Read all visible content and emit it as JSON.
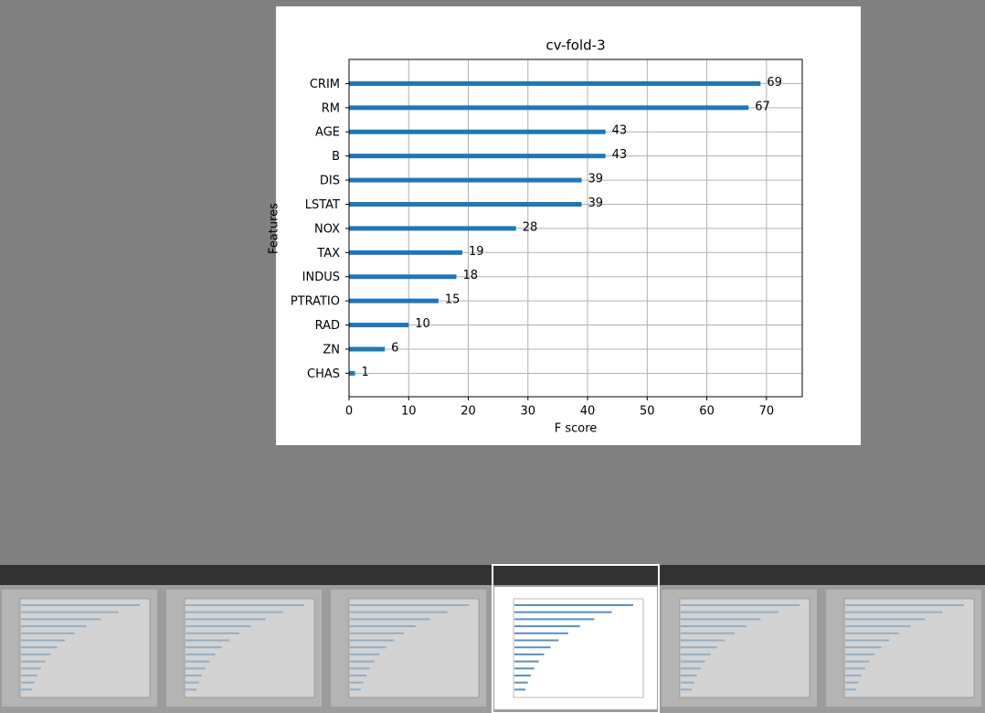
{
  "chart_data": {
    "type": "barh",
    "title": "cv-fold-3",
    "xlabel": "F score",
    "ylabel": "Features",
    "categories": [
      "CRIM",
      "RM",
      "AGE",
      "B",
      "DIS",
      "LSTAT",
      "NOX",
      "TAX",
      "INDUS",
      "PTRATIO",
      "RAD",
      "ZN",
      "CHAS"
    ],
    "values": [
      69,
      67,
      43,
      43,
      39,
      39,
      28,
      19,
      18,
      15,
      10,
      6,
      1
    ],
    "color": "#1f77b4",
    "xlim": [
      0,
      76
    ],
    "xticks": [
      0,
      10,
      20,
      30,
      40,
      50,
      60,
      70
    ],
    "grid": true
  }
}
